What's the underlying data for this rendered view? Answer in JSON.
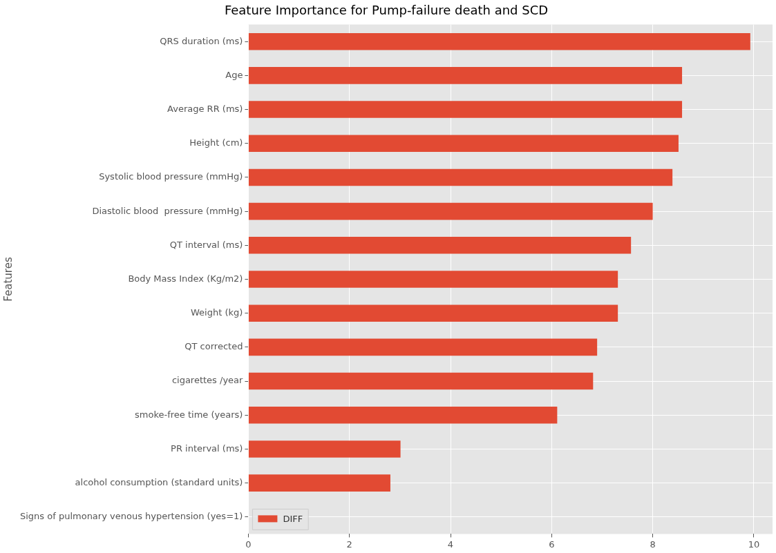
{
  "chart_data": {
    "type": "bar",
    "orientation": "horizontal",
    "title": "Feature Importance for Pump-failure death and SCD",
    "ylabel": "Features",
    "categories": [
      "QRS duration (ms)",
      "Age",
      "Average RR (ms) ",
      "Height (cm)",
      "Systolic blood pressure (mmHg)",
      "Diastolic blood  pressure (mmHg)",
      "QT interval (ms)",
      "Body Mass Index (Kg/m2)",
      "Weight (kg)",
      "QT corrected ",
      "cigarettes /year",
      "smoke-free time (years)",
      "PR interval (ms)",
      "alcohol consumption (standard units)",
      "Signs of pulmonary venous hypertension (yes=1)"
    ],
    "series": [
      {
        "name": "DIFF",
        "color": "#e24a33",
        "values": [
          9.93,
          8.58,
          8.58,
          8.51,
          8.39,
          8.0,
          7.57,
          7.31,
          7.31,
          6.9,
          6.82,
          6.11,
          3.01,
          2.81,
          0
        ]
      }
    ],
    "xlim": [
      0,
      10.37
    ],
    "xticks": [
      0,
      2,
      4,
      6,
      8,
      10
    ],
    "grid": true,
    "legend": "bottom left"
  }
}
